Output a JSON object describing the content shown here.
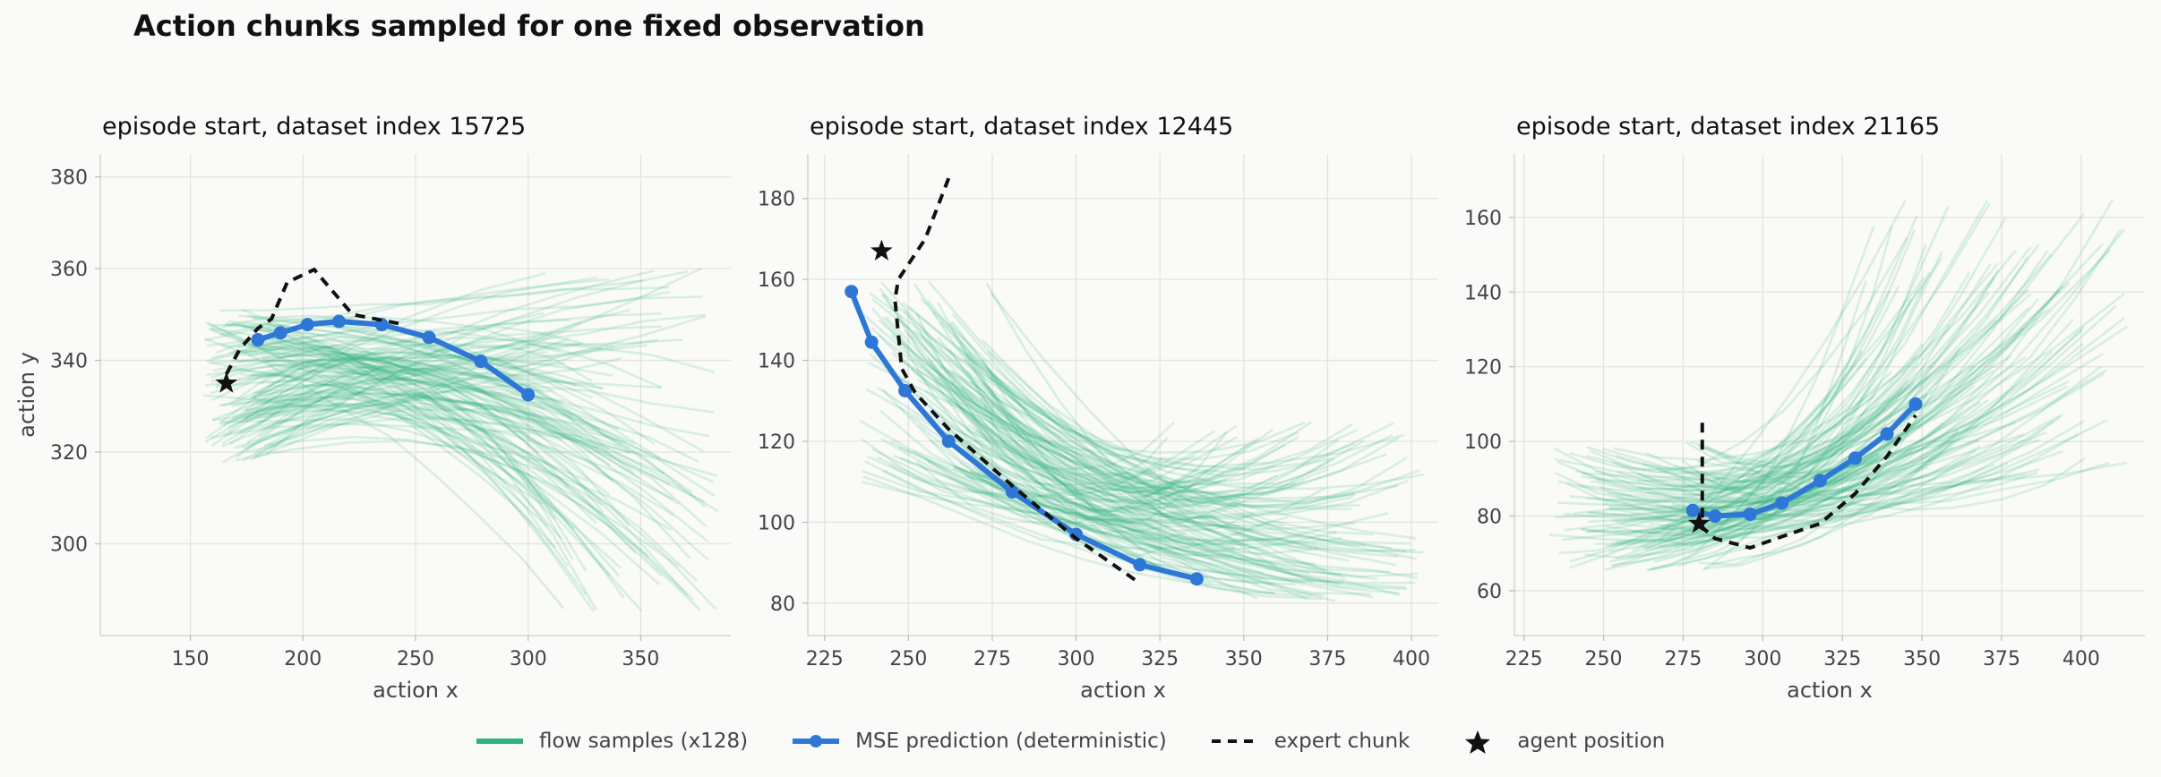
{
  "title": "Action chunks sampled for one fixed observation",
  "colors": {
    "flow": "#2db37f",
    "mse": "#2e77d6",
    "expert": "#111111",
    "agent": "#111111",
    "grid": "#e3e3e0",
    "axis_text": "#444444"
  },
  "legend": {
    "flow": "flow samples (x128)",
    "mse": "MSE prediction (deterministic)",
    "expert": "expert chunk",
    "agent": "agent position"
  },
  "chart_data": [
    {
      "type": "line",
      "title": "episode start, dataset index 15725",
      "xlabel": "action x",
      "ylabel": "action y",
      "xlim": [
        110,
        390
      ],
      "ylim": [
        280,
        385
      ],
      "xticks": [
        150,
        200,
        250,
        300,
        350
      ],
      "yticks": [
        300,
        320,
        340,
        360,
        380
      ],
      "grid": true,
      "series": [
        {
          "name": "MSE prediction (deterministic)",
          "kind": "mse",
          "x": [
            180,
            190,
            202,
            216,
            235,
            256,
            279,
            300
          ],
          "y": [
            344.5,
            346,
            347.8,
            348.5,
            347.8,
            345,
            339.8,
            332.5
          ]
        },
        {
          "name": "expert chunk",
          "kind": "expert",
          "x": [
            166,
            172,
            180,
            186,
            193,
            205,
            222,
            243
          ],
          "y": [
            337,
            342.5,
            347,
            349,
            357,
            359.8,
            350,
            348
          ]
        },
        {
          "name": "agent position",
          "kind": "agent",
          "x": [
            166
          ],
          "y": [
            335
          ]
        }
      ],
      "flow_samples": {
        "count": 128,
        "start_x": [
          155,
          185
        ],
        "start_y": [
          318,
          352
        ],
        "end_x": [
          305,
          385
        ],
        "end_y": [
          285,
          360
        ],
        "mid_y": [
          330,
          358
        ]
      }
    },
    {
      "type": "line",
      "title": "episode start, dataset index 12445",
      "xlabel": "action x",
      "ylabel": "",
      "xlim": [
        220,
        408
      ],
      "ylim": [
        72,
        191
      ],
      "xticks": [
        225,
        250,
        275,
        300,
        325,
        350,
        375,
        400
      ],
      "yticks": [
        80,
        100,
        120,
        140,
        160,
        180
      ],
      "grid": true,
      "series": [
        {
          "name": "MSE prediction (deterministic)",
          "kind": "mse",
          "x": [
            233,
            239,
            249,
            262,
            281,
            300,
            319,
            336
          ],
          "y": [
            157,
            144.5,
            132.5,
            120,
            107.5,
            97,
            89.5,
            86
          ]
        },
        {
          "name": "expert chunk",
          "kind": "expert",
          "x": [
            262,
            255,
            247,
            246,
            248,
            252,
            262,
            281,
            300,
            318
          ],
          "y": [
            185,
            170,
            160,
            155,
            138,
            132,
            123,
            109,
            96,
            85.5
          ]
        },
        {
          "name": "agent position",
          "kind": "agent",
          "x": [
            242
          ],
          "y": [
            167
          ]
        }
      ],
      "flow_samples": {
        "count": 128,
        "start_x": [
          235,
          275
        ],
        "start_y": [
          110,
          160
        ],
        "end_x": [
          325,
          405
        ],
        "end_y": [
          80,
          125
        ],
        "mid_y": [
          80,
          100
        ]
      }
    },
    {
      "type": "line",
      "title": "episode start, dataset index 21165",
      "xlabel": "action x",
      "ylabel": "",
      "xlim": [
        222,
        420
      ],
      "ylim": [
        48,
        177
      ],
      "xticks": [
        225,
        250,
        275,
        300,
        325,
        350,
        375,
        400
      ],
      "yticks": [
        60,
        80,
        100,
        120,
        140,
        160
      ],
      "grid": true,
      "series": [
        {
          "name": "MSE prediction (deterministic)",
          "kind": "mse",
          "x": [
            278,
            285,
            296,
            306,
            318,
            329,
            339,
            348
          ],
          "y": [
            81.5,
            80,
            80.5,
            83.5,
            89.5,
            95.5,
            102,
            110
          ]
        },
        {
          "name": "expert chunk",
          "kind": "expert",
          "x": [
            281,
            281,
            281,
            285,
            296,
            306,
            318,
            329,
            339,
            348
          ],
          "y": [
            105,
            90,
            77,
            74,
            71.5,
            74.5,
            78,
            86,
            96,
            107
          ]
        },
        {
          "name": "agent position",
          "kind": "agent",
          "x": [
            280
          ],
          "y": [
            78
          ]
        }
      ],
      "flow_samples": {
        "count": 128,
        "start_x": [
          232,
          285
        ],
        "start_y": [
          65,
          100
        ],
        "end_x": [
          330,
          415
        ],
        "end_y": [
          90,
          165
        ],
        "mid_y": [
          65,
          82
        ]
      }
    }
  ]
}
